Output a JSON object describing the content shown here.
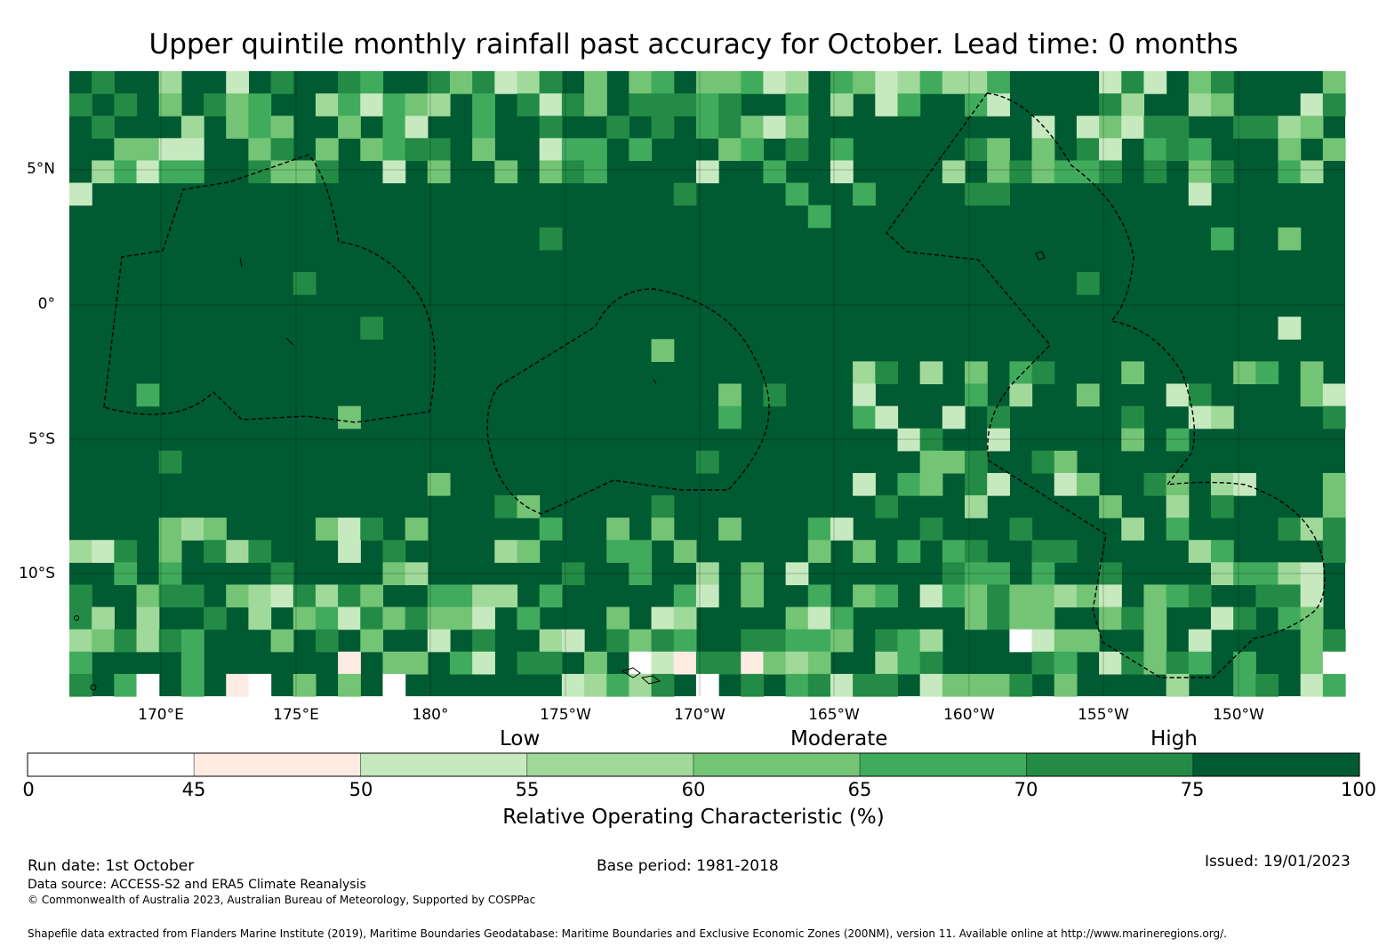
{
  "title": "Upper quintile monthly rainfall past accuracy for October. Lead time: 0 months",
  "map": {
    "lat_labels": [
      "5°N",
      "0°",
      "5°S",
      "10°S"
    ],
    "lon_labels": [
      "170°E",
      "175°E",
      "180°",
      "175°W",
      "170°W",
      "165°W",
      "160°W",
      "155°W",
      "150°W"
    ],
    "legend_categories": [
      "Low",
      "Moderate",
      "High"
    ],
    "colorbar": {
      "bins": [
        {
          "from": 0,
          "to": 45,
          "color": "#ffffff"
        },
        {
          "from": 45,
          "to": 50,
          "color": "#feebe2"
        },
        {
          "from": 50,
          "to": 55,
          "color": "#c7e9c0"
        },
        {
          "from": 55,
          "to": 60,
          "color": "#a1d99b"
        },
        {
          "from": 60,
          "to": 65,
          "color": "#74c476"
        },
        {
          "from": 65,
          "to": 70,
          "color": "#41ab5d"
        },
        {
          "from": 70,
          "to": 75,
          "color": "#238b45"
        },
        {
          "from": 75,
          "to": 100,
          "color": "#005a32"
        }
      ],
      "tick_labels": [
        "0",
        "45",
        "50",
        "55",
        "60",
        "65",
        "70",
        "75",
        "100"
      ],
      "title": "Relative Operating Characteristic (%)"
    },
    "base_color": "#005a32"
  },
  "footer": {
    "run_date": "Run date: 1st October",
    "base_period": "Base period: 1981-2018",
    "issued": "Issued: 19/01/2023",
    "data_source": "Data source: ACCESS-S2 and ERA5 Climate Reanalysis",
    "copyright": "© Commonwealth of Australia 2023, Australian Bureau of Meteorology, Supported by COSPPac",
    "shapefile": "Shapefile data extracted from Flanders Marine Institute (2019), Maritime Boundaries Geodatabase: Maritime Boundaries and Exclusive Economic Zones (200NM), version 11. Available online at http://www.marineregions.org/."
  }
}
